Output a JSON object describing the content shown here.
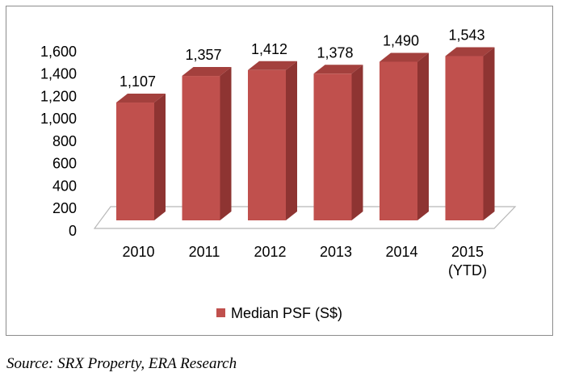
{
  "chart_data": {
    "type": "bar",
    "categories": [
      "2010",
      "2011",
      "2012",
      "2013",
      "2014",
      "2015\n(YTD)"
    ],
    "series": [
      {
        "name": "Median PSF (S$)",
        "values": [
          1107,
          1357,
          1412,
          1378,
          1490,
          1543
        ]
      }
    ],
    "data_labels": [
      "1,107",
      "1,357",
      "1,412",
      "1,378",
      "1,490",
      "1,543"
    ],
    "yticks": [
      "0",
      "200",
      "400",
      "600",
      "800",
      "1,000",
      "1,200",
      "1,400",
      "1,600"
    ],
    "ylim": [
      0,
      1600
    ],
    "legend_position": "bottom",
    "grid": false,
    "style": "3d-column",
    "colors": {
      "bar_front": "#c0504d",
      "bar_side": "#8e3432",
      "bar_top": "#a3403d",
      "floor_edge": "#b8b8b8"
    }
  },
  "source_text": "Source: SRX Property, ERA Research"
}
